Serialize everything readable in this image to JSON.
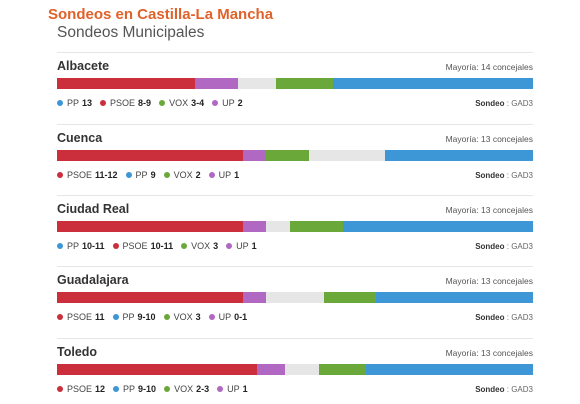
{
  "header": {
    "title": "Sondeos en Castilla-La Mancha",
    "subtitle": "Sondeos Municipales"
  },
  "colors": {
    "PP": "#3d97d6",
    "PSOE": "#cc2f3c",
    "VOX": "#6ba83a",
    "UP": "#b068c2",
    "other": "#e6e6e6",
    "title": "#e0622a"
  },
  "cities": [
    {
      "name": "Albacete",
      "majority": "Mayoría: 14 concejales",
      "bar": [
        {
          "party": "PSOE",
          "pct": 29
        },
        {
          "party": "UP",
          "pct": 9
        },
        {
          "party": "other",
          "pct": 8
        },
        {
          "party": "VOX",
          "pct": 12
        },
        {
          "party": "PP",
          "pct": 42
        }
      ],
      "legend": [
        {
          "party": "PP",
          "seats": "13"
        },
        {
          "party": "PSOE",
          "seats": "8-9"
        },
        {
          "party": "VOX",
          "seats": "3-4"
        },
        {
          "party": "UP",
          "seats": "2"
        }
      ],
      "source_label": "Sondeo",
      "source_value": "GAD3"
    },
    {
      "name": "Cuenca",
      "majority": "Mayoría: 13 concejales",
      "bar": [
        {
          "party": "PSOE",
          "pct": 39
        },
        {
          "party": "UP",
          "pct": 5
        },
        {
          "party": "VOX",
          "pct": 9
        },
        {
          "party": "other",
          "pct": 16
        },
        {
          "party": "PP",
          "pct": 31
        }
      ],
      "legend": [
        {
          "party": "PSOE",
          "seats": "11-12"
        },
        {
          "party": "PP",
          "seats": "9"
        },
        {
          "party": "VOX",
          "seats": "2"
        },
        {
          "party": "UP",
          "seats": "1"
        }
      ],
      "source_label": "Sondeo",
      "source_value": "GAD3"
    },
    {
      "name": "Ciudad Real",
      "majority": "Mayoría: 13 concejales",
      "bar": [
        {
          "party": "PSOE",
          "pct": 39
        },
        {
          "party": "UP",
          "pct": 5
        },
        {
          "party": "other",
          "pct": 5
        },
        {
          "party": "VOX",
          "pct": 11
        },
        {
          "party": "PP",
          "pct": 40
        }
      ],
      "legend": [
        {
          "party": "PP",
          "seats": "10-11"
        },
        {
          "party": "PSOE",
          "seats": "10-11"
        },
        {
          "party": "VOX",
          "seats": "3"
        },
        {
          "party": "UP",
          "seats": "1"
        }
      ],
      "source_label": "Sondeo",
      "source_value": "GAD3"
    },
    {
      "name": "Guadalajara",
      "majority": "Mayoría: 13 concejales",
      "bar": [
        {
          "party": "PSOE",
          "pct": 39
        },
        {
          "party": "UP",
          "pct": 5
        },
        {
          "party": "other",
          "pct": 12
        },
        {
          "party": "VOX",
          "pct": 11
        },
        {
          "party": "PP",
          "pct": 33
        }
      ],
      "legend": [
        {
          "party": "PSOE",
          "seats": "11"
        },
        {
          "party": "PP",
          "seats": "9-10"
        },
        {
          "party": "VOX",
          "seats": "3"
        },
        {
          "party": "UP",
          "seats": "0-1"
        }
      ],
      "source_label": "Sondeo",
      "source_value": "GAD3"
    },
    {
      "name": "Toledo",
      "majority": "Mayoría: 13 concejales",
      "bar": [
        {
          "party": "PSOE",
          "pct": 42
        },
        {
          "party": "UP",
          "pct": 6
        },
        {
          "party": "other",
          "pct": 7
        },
        {
          "party": "VOX",
          "pct": 10
        },
        {
          "party": "PP",
          "pct": 35
        }
      ],
      "legend": [
        {
          "party": "PSOE",
          "seats": "12"
        },
        {
          "party": "PP",
          "seats": "9-10"
        },
        {
          "party": "VOX",
          "seats": "2-3"
        },
        {
          "party": "UP",
          "seats": "1"
        }
      ],
      "source_label": "Sondeo",
      "source_value": "GAD3"
    }
  ]
}
